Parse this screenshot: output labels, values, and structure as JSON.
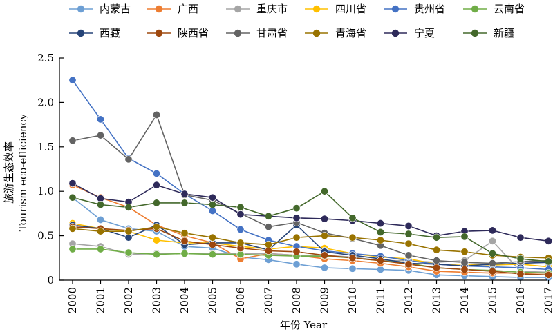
{
  "chart_data": {
    "type": "line",
    "title": "",
    "xlabel": "年份 Year",
    "ylabel": "旅游生态效率",
    "ylabel_en": "Tourism eco-efficiency",
    "categories": [
      "2000",
      "2001",
      "2002",
      "2003",
      "2004",
      "2005",
      "2006",
      "2007",
      "2008",
      "2009",
      "2010",
      "2011",
      "2012",
      "2013",
      "2014",
      "2015",
      "2016",
      "2017"
    ],
    "ylim": [
      0,
      2.5
    ],
    "yticks": [
      "0",
      "0.5",
      "1.0",
      "1.5",
      "2.0",
      "2.5"
    ],
    "grid": false,
    "legend_position": "top",
    "series": [
      {
        "name": "内蒙古",
        "color": "#6d9fd4",
        "values": [
          0.93,
          0.68,
          0.58,
          0.55,
          0.38,
          0.36,
          0.26,
          0.23,
          0.18,
          0.14,
          0.13,
          0.12,
          0.11,
          0.06,
          0.05,
          0.04,
          0.03,
          0.03
        ]
      },
      {
        "name": "广西",
        "color": "#ed7d31",
        "values": [
          1.07,
          0.93,
          0.82,
          0.62,
          0.5,
          0.42,
          0.24,
          0.3,
          0.28,
          0.24,
          0.22,
          0.19,
          0.15,
          0.1,
          0.09,
          0.08,
          0.08,
          0.08
        ]
      },
      {
        "name": "重庆市",
        "color": "#a5a5a5",
        "values": [
          0.41,
          0.38,
          0.29,
          0.3,
          0.3,
          0.3,
          0.3,
          0.3,
          0.28,
          0.28,
          0.26,
          0.22,
          0.22,
          0.2,
          0.22,
          0.44,
          0.1,
          0.09
        ]
      },
      {
        "name": "四川省",
        "color": "#ffc000",
        "values": [
          0.64,
          0.58,
          0.55,
          0.45,
          0.42,
          0.42,
          0.38,
          0.35,
          0.38,
          0.36,
          0.3,
          0.26,
          0.24,
          0.18,
          0.18,
          0.17,
          0.18,
          0.15
        ]
      },
      {
        "name": "贵州省",
        "color": "#4472c4",
        "values": [
          2.25,
          1.81,
          1.37,
          1.2,
          0.97,
          0.78,
          0.57,
          0.45,
          0.38,
          0.33,
          0.3,
          0.27,
          0.22,
          0.18,
          0.16,
          0.15,
          0.14,
          0.12
        ]
      },
      {
        "name": "云南省",
        "color": "#70ad47",
        "values": [
          0.35,
          0.35,
          0.31,
          0.29,
          0.3,
          0.29,
          0.29,
          0.28,
          0.27,
          0.27,
          0.25,
          0.22,
          0.19,
          0.14,
          0.12,
          0.11,
          0.09,
          0.08
        ]
      },
      {
        "name": "西藏",
        "color": "#264478",
        "values": [
          0.62,
          0.58,
          0.48,
          0.62,
          0.4,
          0.42,
          0.42,
          0.34,
          0.62,
          0.32,
          0.28,
          0.24,
          0.19,
          0.18,
          0.16,
          0.18,
          0.19,
          0.2
        ]
      },
      {
        "name": "陕西省",
        "color": "#9e480e",
        "values": [
          0.6,
          0.58,
          0.56,
          0.58,
          0.44,
          0.4,
          0.36,
          0.33,
          0.32,
          0.28,
          0.25,
          0.22,
          0.18,
          0.14,
          0.12,
          0.1,
          0.07,
          0.06
        ]
      },
      {
        "name": "甘肃省",
        "color": "#636363",
        "values": [
          1.57,
          1.63,
          1.36,
          1.86,
          0.96,
          0.9,
          0.75,
          0.6,
          0.65,
          0.53,
          0.47,
          0.39,
          0.28,
          0.22,
          0.2,
          0.19,
          0.21,
          0.22
        ]
      },
      {
        "name": "青海省",
        "color": "#997300",
        "values": [
          0.58,
          0.55,
          0.55,
          0.6,
          0.53,
          0.48,
          0.42,
          0.4,
          0.48,
          0.5,
          0.48,
          0.45,
          0.41,
          0.34,
          0.32,
          0.28,
          0.26,
          0.25
        ]
      },
      {
        "name": "宁夏",
        "color": "#2e2a5a",
        "values": [
          1.09,
          0.92,
          0.88,
          1.07,
          0.97,
          0.93,
          0.74,
          0.72,
          0.7,
          0.69,
          0.67,
          0.64,
          0.61,
          0.5,
          0.55,
          0.56,
          0.48,
          0.44
        ]
      },
      {
        "name": "新疆",
        "color": "#43682b",
        "values": [
          0.93,
          0.85,
          0.82,
          0.87,
          0.87,
          0.85,
          0.82,
          0.72,
          0.81,
          1.0,
          0.7,
          0.54,
          0.52,
          0.48,
          0.49,
          0.3,
          0.24,
          0.21
        ]
      }
    ]
  }
}
